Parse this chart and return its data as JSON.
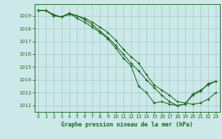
{
  "title": "Graphe pression niveau de la mer (hPa)",
  "bg_color": "#cce8e8",
  "grid_color": "#aacfcf",
  "line_color": "#1a6b1a",
  "xlim": [
    -0.5,
    23.5
  ],
  "ylim": [
    1011.5,
    1019.9
  ],
  "yticks": [
    1012,
    1013,
    1014,
    1015,
    1016,
    1017,
    1018,
    1019
  ],
  "xticks": [
    0,
    1,
    2,
    3,
    4,
    5,
    6,
    7,
    8,
    9,
    10,
    11,
    12,
    13,
    14,
    15,
    16,
    17,
    18,
    19,
    20,
    21,
    22,
    23
  ],
  "series": [
    [
      1019.4,
      1019.4,
      1019.1,
      1018.9,
      1019.2,
      1018.8,
      1018.5,
      1018.1,
      1017.7,
      1017.2,
      1016.5,
      1015.7,
      1015.1,
      1013.5,
      1013.0,
      1012.2,
      1012.3,
      1012.1,
      1012.0,
      1012.1,
      1012.8,
      1013.1,
      1013.7,
      1013.9
    ],
    [
      1019.4,
      1019.4,
      1019.0,
      1018.9,
      1019.1,
      1019.0,
      1018.8,
      1018.5,
      1018.1,
      1017.7,
      1017.1,
      1016.4,
      1015.8,
      1015.3,
      1014.4,
      1013.6,
      1013.2,
      1012.8,
      1012.3,
      1012.2,
      1012.1,
      1012.2,
      1012.5,
      1013.0
    ],
    [
      1019.4,
      1019.4,
      1019.0,
      1018.9,
      1019.2,
      1019.0,
      1018.7,
      1018.3,
      1017.8,
      1017.3,
      1016.7,
      1016.0,
      1015.3,
      1014.7,
      1014.0,
      1013.4,
      1012.8,
      1012.3,
      1012.0,
      1012.1,
      1012.9,
      1013.2,
      1013.6,
      1013.9
    ]
  ]
}
